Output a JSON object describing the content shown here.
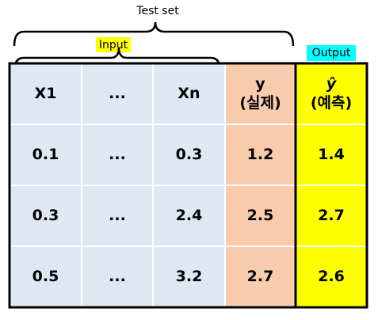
{
  "title": "Test set",
  "input_label": "Input",
  "output_label": "Output",
  "table": {
    "header": [
      "X1",
      "...",
      "Xn",
      [
        "y",
        "(실제)"
      ],
      [
        "ŷ",
        "(예측)"
      ]
    ],
    "rows": [
      [
        "0.1",
        "...",
        "0.3",
        "1.2",
        "1.4"
      ],
      [
        "0.3",
        "...",
        "2.4",
        "2.5",
        "2.7"
      ],
      [
        "0.5",
        "...",
        "3.2",
        "2.7",
        "2.6"
      ]
    ]
  }
}
